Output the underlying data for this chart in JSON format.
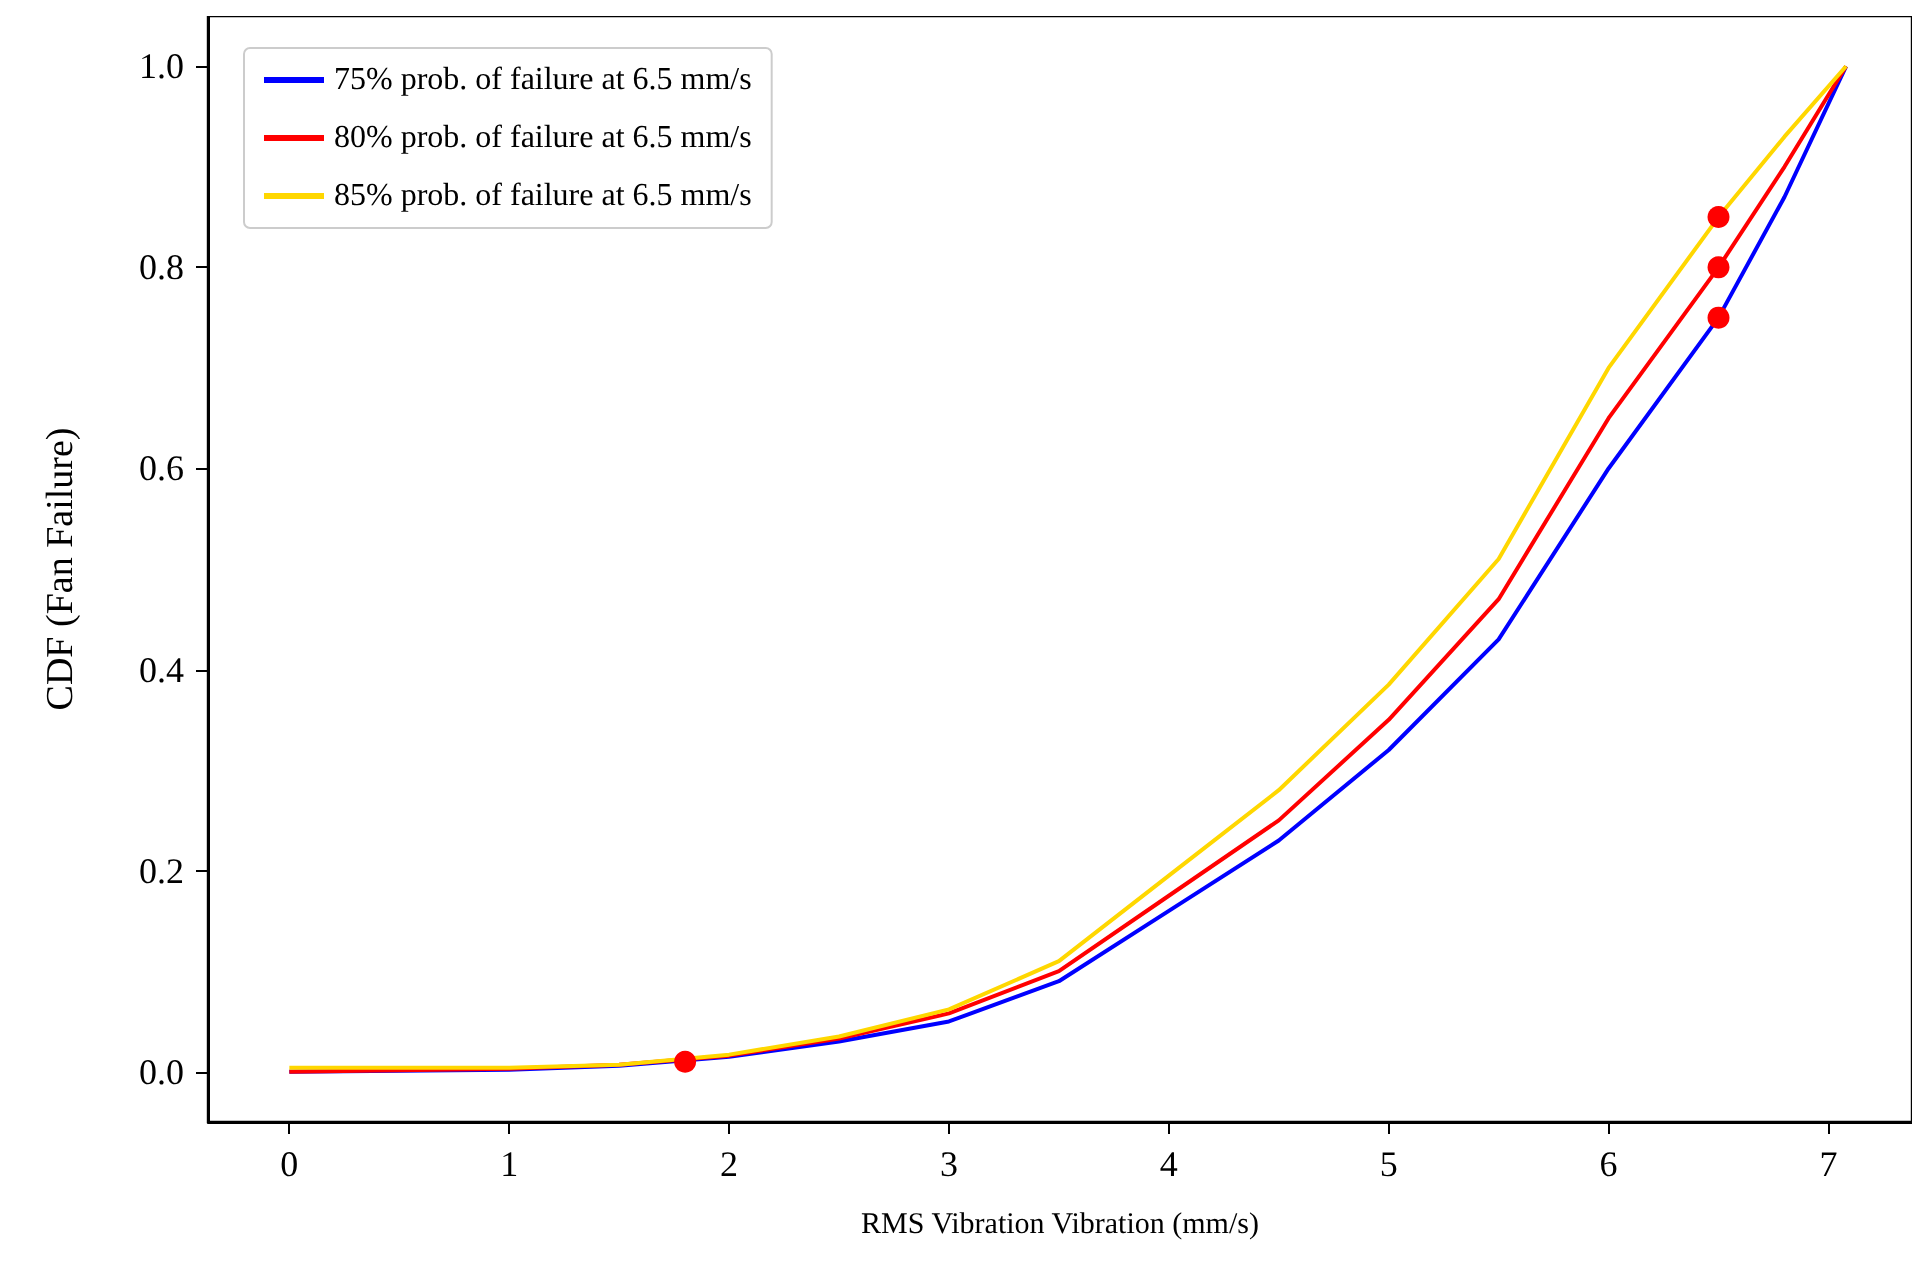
{
  "chart_data": {
    "type": "line",
    "xlabel": "RMS Vibration Vibration (mm/s)",
    "ylabel": "CDF (Fan Failure)",
    "xlim": [
      -0.37,
      7.38
    ],
    "xticks": [
      0,
      1,
      2,
      3,
      4,
      5,
      6,
      7
    ],
    "ylim": [
      -0.05,
      1.05
    ],
    "yticks": [
      {
        "value": 0,
        "label": "0.0"
      },
      {
        "value": 0.2,
        "label": "0.2"
      },
      {
        "value": 0.4,
        "label": "0.4"
      },
      {
        "value": 0.6,
        "label": "0.6"
      },
      {
        "value": 0.8,
        "label": "0.8"
      },
      {
        "value": 1,
        "label": "1.0"
      }
    ],
    "grid": false,
    "legend": "top left",
    "marker": "none",
    "line_style": "solid",
    "series": [
      {
        "name": "75% prob. of failure at 6.5 mm/s",
        "color": "#0000ff",
        "x": [
          0,
          1,
          1.5,
          2,
          2.5,
          3,
          3.5,
          4,
          4.5,
          5,
          5.5,
          6,
          6.5,
          6.8,
          7.08
        ],
        "values": [
          0,
          0.002,
          0.006,
          0.015,
          0.03,
          0.05,
          0.09,
          0.16,
          0.23,
          0.32,
          0.43,
          0.6,
          0.75,
          0.87,
          1
        ]
      },
      {
        "name": "80% prob. of failure at 6.5 mm/s",
        "color": "#ff0000",
        "x": [
          0,
          1,
          1.5,
          2,
          2.5,
          3,
          3.5,
          4,
          4.5,
          5,
          5.5,
          6,
          6.5,
          6.8,
          7.08
        ],
        "values": [
          0,
          0.003,
          0.007,
          0.016,
          0.033,
          0.058,
          0.1,
          0.175,
          0.25,
          0.35,
          0.47,
          0.65,
          0.8,
          0.9,
          1
        ]
      },
      {
        "name": "85% prob. of failure at 6.5 mm/s",
        "color": "#ffd700",
        "x": [
          0,
          1,
          1.5,
          2,
          2.5,
          3,
          3.5,
          4,
          4.5,
          5,
          5.5,
          6,
          6.5,
          6.8,
          7.08
        ],
        "values": [
          0.004,
          0.004,
          0.007,
          0.017,
          0.035,
          0.062,
          0.11,
          0.195,
          0.28,
          0.385,
          0.51,
          0.7,
          0.85,
          0.93,
          1
        ]
      },
      {
        "type": "scatter",
        "color": "#ff0000",
        "marker": "circle",
        "x": [
          1.8,
          6.5,
          6.5,
          6.5
        ],
        "values": [
          0.01,
          0.75,
          0.8,
          0.85
        ]
      }
    ]
  }
}
